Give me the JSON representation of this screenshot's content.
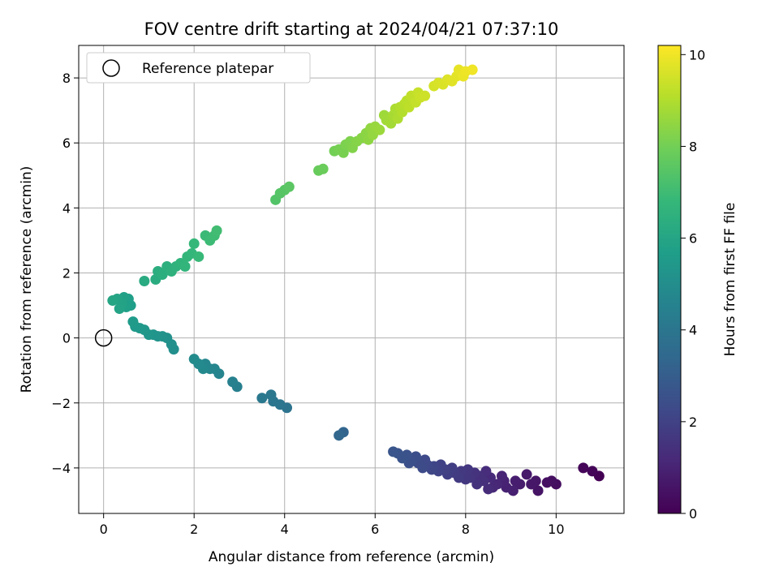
{
  "chart_data": {
    "type": "scatter",
    "title": "FOV centre drift starting at 2024/04/21 07:37:10",
    "xlabel": "Angular distance from reference (arcmin)",
    "ylabel": "Rotation from reference (arcmin)",
    "xlim": [
      -0.55,
      11.5
    ],
    "ylim": [
      -5.4,
      9.0
    ],
    "xticks": [
      0,
      2,
      4,
      6,
      8,
      10
    ],
    "yticks": [
      -4,
      -2,
      0,
      2,
      4,
      6,
      8
    ],
    "grid": true,
    "legend": {
      "placement": "top-left",
      "entries": [
        "Reference platepar"
      ]
    },
    "reference_point": {
      "x": 0,
      "y": 0
    },
    "colorbar": {
      "label": "Hours from first FF file",
      "min": 0,
      "max": 10.2,
      "ticks": [
        0,
        2,
        4,
        6,
        8,
        10
      ],
      "colormap": "viridis"
    },
    "points": [
      {
        "x": 10.95,
        "y": -4.25,
        "c": 0.0
      },
      {
        "x": 10.8,
        "y": -4.1,
        "c": 0.08
      },
      {
        "x": 10.6,
        "y": -4.0,
        "c": 0.15
      },
      {
        "x": 10.0,
        "y": -4.5,
        "c": 0.35
      },
      {
        "x": 9.9,
        "y": -4.4,
        "c": 0.4
      },
      {
        "x": 9.8,
        "y": -4.45,
        "c": 0.45
      },
      {
        "x": 9.6,
        "y": -4.7,
        "c": 0.55
      },
      {
        "x": 9.55,
        "y": -4.4,
        "c": 0.6
      },
      {
        "x": 9.45,
        "y": -4.5,
        "c": 0.65
      },
      {
        "x": 9.35,
        "y": -4.2,
        "c": 0.7
      },
      {
        "x": 9.2,
        "y": -4.5,
        "c": 0.78
      },
      {
        "x": 9.1,
        "y": -4.4,
        "c": 0.85
      },
      {
        "x": 9.05,
        "y": -4.7,
        "c": 0.9
      },
      {
        "x": 8.9,
        "y": -4.6,
        "c": 0.95
      },
      {
        "x": 8.85,
        "y": -4.4,
        "c": 1.0
      },
      {
        "x": 8.8,
        "y": -4.25,
        "c": 1.05
      },
      {
        "x": 8.7,
        "y": -4.5,
        "c": 1.1
      },
      {
        "x": 8.6,
        "y": -4.6,
        "c": 1.15
      },
      {
        "x": 8.55,
        "y": -4.3,
        "c": 1.2
      },
      {
        "x": 8.5,
        "y": -4.65,
        "c": 1.25
      },
      {
        "x": 8.45,
        "y": -4.1,
        "c": 1.3
      },
      {
        "x": 8.4,
        "y": -4.4,
        "c": 1.35
      },
      {
        "x": 8.3,
        "y": -4.25,
        "c": 1.4
      },
      {
        "x": 8.25,
        "y": -4.5,
        "c": 1.45
      },
      {
        "x": 8.2,
        "y": -4.15,
        "c": 1.5
      },
      {
        "x": 8.1,
        "y": -4.3,
        "c": 1.55
      },
      {
        "x": 8.05,
        "y": -4.05,
        "c": 1.6
      },
      {
        "x": 8.0,
        "y": -4.35,
        "c": 1.65
      },
      {
        "x": 7.9,
        "y": -4.1,
        "c": 1.7
      },
      {
        "x": 7.85,
        "y": -4.3,
        "c": 1.75
      },
      {
        "x": 7.75,
        "y": -4.15,
        "c": 1.8
      },
      {
        "x": 7.7,
        "y": -4.0,
        "c": 1.85
      },
      {
        "x": 7.6,
        "y": -4.2,
        "c": 1.9
      },
      {
        "x": 7.55,
        "y": -4.05,
        "c": 1.95
      },
      {
        "x": 7.45,
        "y": -3.9,
        "c": 2.0
      },
      {
        "x": 7.4,
        "y": -4.1,
        "c": 2.05
      },
      {
        "x": 7.3,
        "y": -3.95,
        "c": 2.1
      },
      {
        "x": 7.25,
        "y": -4.05,
        "c": 2.15
      },
      {
        "x": 7.15,
        "y": -3.9,
        "c": 2.2
      },
      {
        "x": 7.1,
        "y": -3.75,
        "c": 2.25
      },
      {
        "x": 7.05,
        "y": -4.0,
        "c": 2.3
      },
      {
        "x": 6.95,
        "y": -3.85,
        "c": 2.35
      },
      {
        "x": 6.9,
        "y": -3.65,
        "c": 2.4
      },
      {
        "x": 6.8,
        "y": -3.8,
        "c": 2.45
      },
      {
        "x": 6.75,
        "y": -3.85,
        "c": 2.5
      },
      {
        "x": 6.7,
        "y": -3.6,
        "c": 2.55
      },
      {
        "x": 6.6,
        "y": -3.7,
        "c": 2.6
      },
      {
        "x": 6.5,
        "y": -3.55,
        "c": 2.65
      },
      {
        "x": 6.4,
        "y": -3.5,
        "c": 2.7
      },
      {
        "x": 5.3,
        "y": -2.9,
        "c": 3.3
      },
      {
        "x": 5.2,
        "y": -3.0,
        "c": 3.35
      },
      {
        "x": 4.05,
        "y": -2.15,
        "c": 3.9
      },
      {
        "x": 3.9,
        "y": -2.05,
        "c": 3.95
      },
      {
        "x": 3.75,
        "y": -1.95,
        "c": 4.0
      },
      {
        "x": 3.7,
        "y": -1.75,
        "c": 4.05
      },
      {
        "x": 3.5,
        "y": -1.85,
        "c": 4.1
      },
      {
        "x": 2.95,
        "y": -1.5,
        "c": 4.4
      },
      {
        "x": 2.85,
        "y": -1.35,
        "c": 4.45
      },
      {
        "x": 2.55,
        "y": -1.1,
        "c": 4.6
      },
      {
        "x": 2.45,
        "y": -0.95,
        "c": 4.65
      },
      {
        "x": 2.35,
        "y": -0.95,
        "c": 4.7
      },
      {
        "x": 2.25,
        "y": -0.8,
        "c": 4.75
      },
      {
        "x": 2.2,
        "y": -0.95,
        "c": 4.8
      },
      {
        "x": 2.1,
        "y": -0.8,
        "c": 4.85
      },
      {
        "x": 2.0,
        "y": -0.65,
        "c": 4.9
      },
      {
        "x": 1.55,
        "y": -0.35,
        "c": 5.05
      },
      {
        "x": 1.5,
        "y": -0.2,
        "c": 5.1
      },
      {
        "x": 1.4,
        "y": 0.0,
        "c": 5.15
      },
      {
        "x": 1.3,
        "y": 0.05,
        "c": 5.2
      },
      {
        "x": 1.2,
        "y": 0.05,
        "c": 5.25
      },
      {
        "x": 1.1,
        "y": 0.1,
        "c": 5.3
      },
      {
        "x": 1.0,
        "y": 0.1,
        "c": 5.35
      },
      {
        "x": 0.9,
        "y": 0.25,
        "c": 5.4
      },
      {
        "x": 0.8,
        "y": 0.3,
        "c": 5.45
      },
      {
        "x": 0.7,
        "y": 0.35,
        "c": 5.5
      },
      {
        "x": 0.65,
        "y": 0.5,
        "c": 5.55
      },
      {
        "x": 0.6,
        "y": 1.0,
        "c": 5.65
      },
      {
        "x": 0.55,
        "y": 1.2,
        "c": 5.7
      },
      {
        "x": 0.5,
        "y": 0.95,
        "c": 5.75
      },
      {
        "x": 0.45,
        "y": 1.25,
        "c": 5.8
      },
      {
        "x": 0.4,
        "y": 1.05,
        "c": 5.85
      },
      {
        "x": 0.35,
        "y": 0.9,
        "c": 5.9
      },
      {
        "x": 0.3,
        "y": 1.2,
        "c": 5.95
      },
      {
        "x": 0.2,
        "y": 1.15,
        "c": 6.0
      },
      {
        "x": 0.9,
        "y": 1.75,
        "c": 6.2
      },
      {
        "x": 1.15,
        "y": 1.8,
        "c": 6.3
      },
      {
        "x": 1.2,
        "y": 2.05,
        "c": 6.35
      },
      {
        "x": 1.3,
        "y": 1.95,
        "c": 6.4
      },
      {
        "x": 1.4,
        "y": 2.2,
        "c": 6.45
      },
      {
        "x": 1.5,
        "y": 2.05,
        "c": 6.5
      },
      {
        "x": 1.6,
        "y": 2.2,
        "c": 6.55
      },
      {
        "x": 1.7,
        "y": 2.3,
        "c": 6.6
      },
      {
        "x": 1.8,
        "y": 2.2,
        "c": 6.65
      },
      {
        "x": 1.85,
        "y": 2.5,
        "c": 6.7
      },
      {
        "x": 1.95,
        "y": 2.6,
        "c": 6.75
      },
      {
        "x": 2.0,
        "y": 2.9,
        "c": 6.8
      },
      {
        "x": 2.1,
        "y": 2.5,
        "c": 6.85
      },
      {
        "x": 2.25,
        "y": 3.15,
        "c": 6.9
      },
      {
        "x": 2.35,
        "y": 3.0,
        "c": 6.95
      },
      {
        "x": 2.45,
        "y": 3.15,
        "c": 7.0
      },
      {
        "x": 2.5,
        "y": 3.3,
        "c": 7.05
      },
      {
        "x": 3.8,
        "y": 4.25,
        "c": 7.4
      },
      {
        "x": 3.9,
        "y": 4.45,
        "c": 7.45
      },
      {
        "x": 4.0,
        "y": 4.55,
        "c": 7.5
      },
      {
        "x": 4.1,
        "y": 4.65,
        "c": 7.55
      },
      {
        "x": 4.75,
        "y": 5.15,
        "c": 7.8
      },
      {
        "x": 4.85,
        "y": 5.2,
        "c": 7.85
      },
      {
        "x": 5.1,
        "y": 5.75,
        "c": 8.0
      },
      {
        "x": 5.2,
        "y": 5.8,
        "c": 8.05
      },
      {
        "x": 5.3,
        "y": 5.7,
        "c": 8.1
      },
      {
        "x": 5.35,
        "y": 5.95,
        "c": 8.15
      },
      {
        "x": 5.45,
        "y": 6.05,
        "c": 8.2
      },
      {
        "x": 5.5,
        "y": 5.85,
        "c": 8.25
      },
      {
        "x": 5.6,
        "y": 6.05,
        "c": 8.3
      },
      {
        "x": 5.7,
        "y": 6.15,
        "c": 8.35
      },
      {
        "x": 5.8,
        "y": 6.3,
        "c": 8.4
      },
      {
        "x": 5.85,
        "y": 6.1,
        "c": 8.45
      },
      {
        "x": 5.9,
        "y": 6.45,
        "c": 8.5
      },
      {
        "x": 5.95,
        "y": 6.25,
        "c": 8.55
      },
      {
        "x": 6.0,
        "y": 6.5,
        "c": 8.6
      },
      {
        "x": 6.1,
        "y": 6.4,
        "c": 8.65
      },
      {
        "x": 6.2,
        "y": 6.85,
        "c": 8.7
      },
      {
        "x": 6.25,
        "y": 6.7,
        "c": 8.75
      },
      {
        "x": 6.35,
        "y": 6.6,
        "c": 8.8
      },
      {
        "x": 6.4,
        "y": 6.85,
        "c": 8.85
      },
      {
        "x": 6.45,
        "y": 7.05,
        "c": 8.9
      },
      {
        "x": 6.5,
        "y": 6.75,
        "c": 8.95
      },
      {
        "x": 6.55,
        "y": 7.1,
        "c": 9.0
      },
      {
        "x": 6.6,
        "y": 6.95,
        "c": 9.05
      },
      {
        "x": 6.65,
        "y": 7.2,
        "c": 9.1
      },
      {
        "x": 6.7,
        "y": 7.3,
        "c": 9.15
      },
      {
        "x": 6.75,
        "y": 7.1,
        "c": 9.2
      },
      {
        "x": 6.8,
        "y": 7.45,
        "c": 9.25
      },
      {
        "x": 6.9,
        "y": 7.25,
        "c": 9.3
      },
      {
        "x": 6.95,
        "y": 7.55,
        "c": 9.35
      },
      {
        "x": 7.0,
        "y": 7.4,
        "c": 9.4
      },
      {
        "x": 7.1,
        "y": 7.45,
        "c": 9.45
      },
      {
        "x": 7.3,
        "y": 7.75,
        "c": 9.55
      },
      {
        "x": 7.4,
        "y": 7.85,
        "c": 9.6
      },
      {
        "x": 7.5,
        "y": 7.8,
        "c": 9.65
      },
      {
        "x": 7.6,
        "y": 7.95,
        "c": 9.7
      },
      {
        "x": 7.7,
        "y": 7.9,
        "c": 9.75
      },
      {
        "x": 7.8,
        "y": 8.05,
        "c": 9.8
      },
      {
        "x": 7.85,
        "y": 8.25,
        "c": 9.85
      },
      {
        "x": 7.95,
        "y": 8.05,
        "c": 9.9
      },
      {
        "x": 8.0,
        "y": 8.2,
        "c": 9.95
      },
      {
        "x": 8.15,
        "y": 8.25,
        "c": 10.0
      }
    ]
  }
}
